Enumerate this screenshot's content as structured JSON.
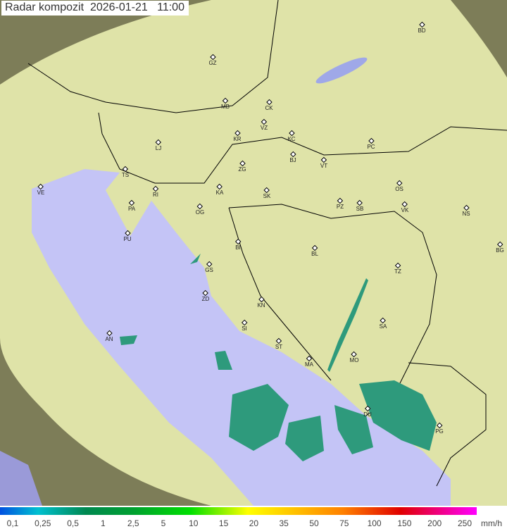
{
  "title": {
    "product": "Radar kompozit",
    "date": "2026-01-21",
    "time": "11:00"
  },
  "legend": {
    "labels": [
      "0,1",
      "0,25",
      "0,5",
      "1",
      "2,5",
      "5",
      "10",
      "15",
      "20",
      "35",
      "50",
      "75",
      "100",
      "150",
      "200",
      "250"
    ],
    "unit": "mm/h"
  },
  "colors": {
    "land": "#e8eab0",
    "sea": "#c0c0f8",
    "outside": "#8a8a60",
    "border": "#000000",
    "radar": "#30a080"
  },
  "cities": [
    "BD",
    "GZ",
    "MB",
    "CK",
    "VZ",
    "KR",
    "KC",
    "PC",
    "LJ",
    "BJ",
    "ZG",
    "TS",
    "VT",
    "VE",
    "RI",
    "KA",
    "SK",
    "OS",
    "PA",
    "OG",
    "PZ",
    "SB",
    "VK",
    "NS",
    "PU",
    "BG",
    "BI",
    "BL",
    "GS",
    "TZ",
    "ZD",
    "KN",
    "SA",
    "SI",
    "AN",
    "ST",
    "MO",
    "MA",
    "DU",
    "PG"
  ]
}
